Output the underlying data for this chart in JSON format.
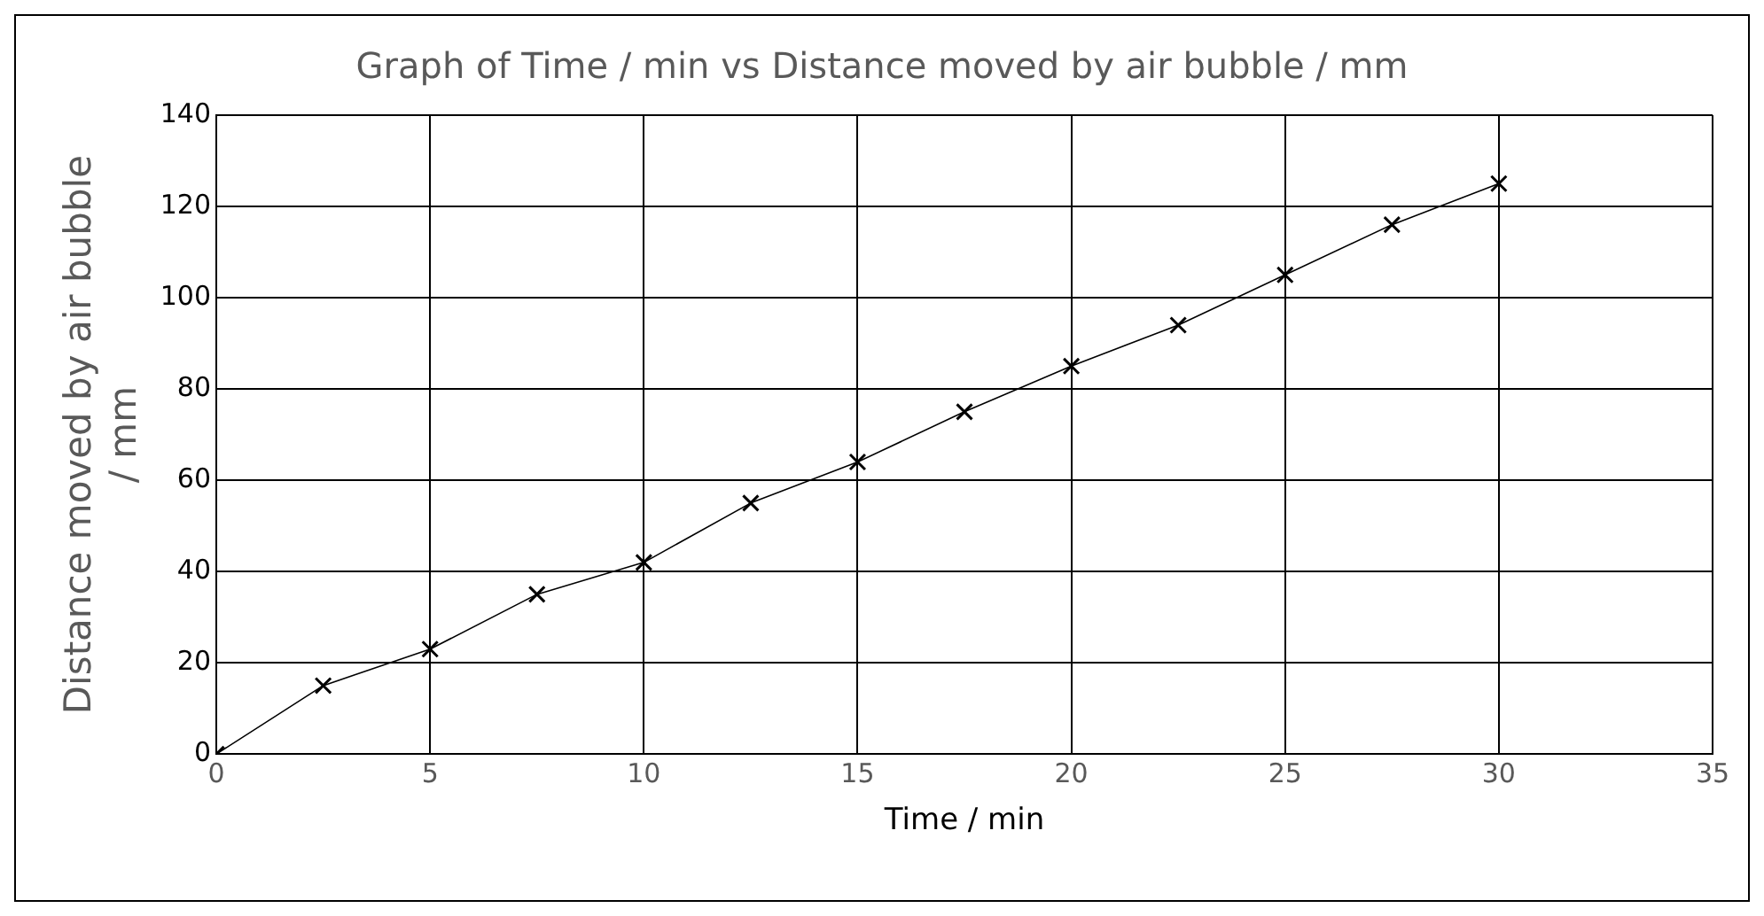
{
  "chart_data": {
    "type": "line",
    "title": "Graph of Time / min vs Distance moved by air bubble / mm",
    "xlabel": "Time / min",
    "ylabel": "Distance moved by air bubble / mm",
    "x": [
      0,
      2.5,
      5,
      7.5,
      10,
      12.5,
      15,
      17.5,
      20,
      22.5,
      25,
      27.5,
      30
    ],
    "series": [
      {
        "color": "#000000",
        "values": [
          0,
          15,
          23,
          35,
          42,
          55,
          64,
          75,
          85,
          94,
          105,
          116,
          125
        ]
      }
    ],
    "xlim": [
      0,
      35
    ],
    "xticks": [
      0,
      5,
      10,
      15,
      20,
      25,
      30,
      35
    ],
    "ylim": [
      0,
      140
    ],
    "yticks": [
      0,
      20,
      40,
      60,
      80,
      100,
      120,
      140
    ],
    "grid": true,
    "legend": false,
    "marker": "cross",
    "line_style": "solid"
  }
}
